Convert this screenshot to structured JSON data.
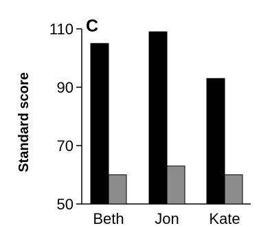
{
  "chart_data": {
    "type": "bar",
    "panel_label": "C",
    "title": "",
    "xlabel": "",
    "ylabel": "Standard score",
    "ylim": [
      50,
      110
    ],
    "yticks": [
      50,
      70,
      90,
      110
    ],
    "categories": [
      "Beth",
      "Jon",
      "Kate"
    ],
    "series": [
      {
        "color": "#000000",
        "values": [
          105,
          109,
          93
        ]
      },
      {
        "color": "#8c8c8c",
        "values": [
          60,
          63,
          60
        ]
      }
    ],
    "grid": false,
    "legend": "none"
  }
}
